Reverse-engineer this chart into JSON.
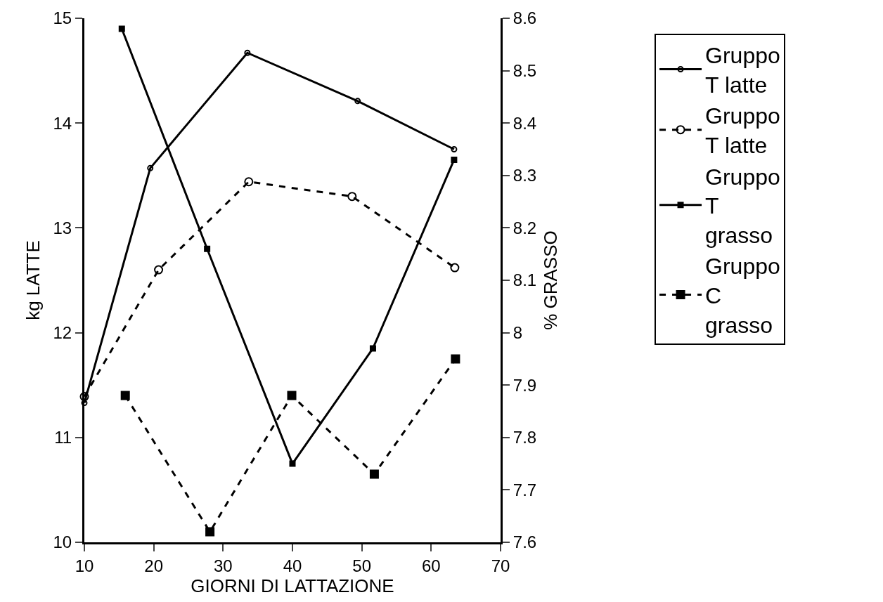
{
  "chart_data": {
    "type": "line",
    "xlabel": "GIORNI DI LATTAZIONE",
    "ylabel": "kg LATTE",
    "y2label": "% GRASSO",
    "xlim": [
      10,
      70
    ],
    "xticks": [
      10,
      20,
      30,
      40,
      50,
      60,
      70
    ],
    "ylim": [
      10,
      15
    ],
    "yticks": [
      10,
      11,
      12,
      13,
      14,
      15
    ],
    "y2lim": [
      7.6,
      8.6
    ],
    "y2ticks": [
      7.6,
      7.7,
      7.8,
      7.9,
      8,
      8.1,
      8.2,
      8.3,
      8.4,
      8.5,
      8.6
    ],
    "grid": false,
    "legend": "right",
    "series": [
      {
        "name": "Gruppo T latte",
        "color": "#000000",
        "marker": "circle",
        "line_style": "solid",
        "x": [
          10,
          19.5,
          33.5,
          49.4,
          63.3
        ],
        "values": [
          11.33,
          13.57,
          14.67,
          14.21,
          13.75
        ]
      },
      {
        "name": "Gruppo T latte",
        "color": "#000000",
        "marker": "circle",
        "line_style": "dashed",
        "x": [
          10,
          20.7,
          33.7,
          48.6,
          63.4
        ],
        "values": [
          11.39,
          12.6,
          13.44,
          13.3,
          12.62
        ]
      },
      {
        "name": "Gruppo T grasso",
        "color": "#000000",
        "marker": "square",
        "line_style": "solid",
        "axis": "y2",
        "x": [
          15.4,
          27.7,
          40,
          51.6,
          63.3
        ],
        "values": [
          8.58,
          8.16,
          7.75,
          7.97,
          8.33
        ]
      },
      {
        "name": "Gruppo C grasso",
        "color": "#000000",
        "marker": "square",
        "line_style": "dashed",
        "axis": "y2",
        "x": [
          15.9,
          28.1,
          39.9,
          51.8,
          63.5
        ],
        "values": [
          7.88,
          7.62,
          7.88,
          7.73,
          7.95
        ]
      }
    ]
  }
}
